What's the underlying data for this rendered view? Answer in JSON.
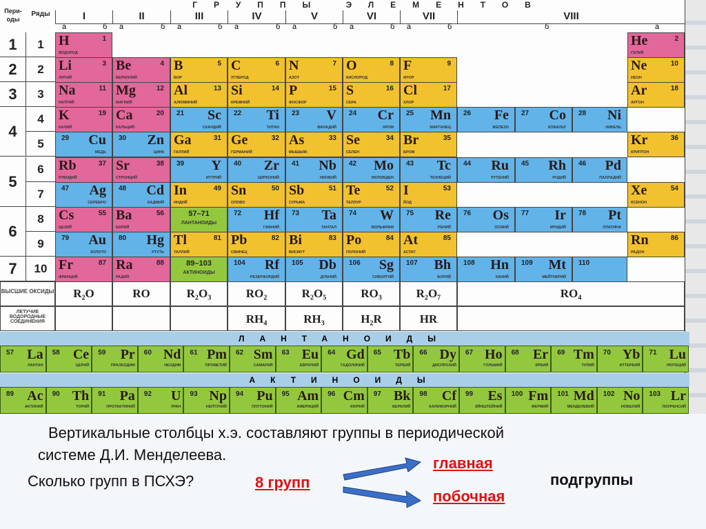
{
  "header": {
    "periods": "Пери-оды",
    "rows": "Ряды",
    "groups_title": "ГРУППЫ ЭЛЕМЕНТОВ",
    "groups": [
      "I",
      "II",
      "III",
      "IV",
      "V",
      "VI",
      "VII",
      "VIII"
    ],
    "sub_a": "а",
    "sub_b": "б",
    "periods_list": [
      "1",
      "2",
      "3",
      "4",
      "5",
      "6",
      "7"
    ],
    "rows_list": [
      "1",
      "2",
      "3",
      "4",
      "5",
      "6",
      "7",
      "8",
      "9",
      "10"
    ]
  },
  "colors": {
    "s": "#e2679a",
    "p": "#f2c12e",
    "d": "#62b3e8",
    "f": "#93c83e"
  },
  "elements": [
    {
      "n": "1",
      "s": "H",
      "name": "ВОДОРОД",
      "r": 1,
      "c": 0,
      "side": "a",
      "t": "s"
    },
    {
      "n": "2",
      "s": "He",
      "name": "ГЕЛИЙ",
      "r": 1,
      "c": 10,
      "side": "a",
      "t": "s"
    },
    {
      "n": "3",
      "s": "Li",
      "name": "ЛИТИЙ",
      "r": 2,
      "c": 0,
      "side": "a",
      "t": "s"
    },
    {
      "n": "4",
      "s": "Be",
      "name": "БЕРИЛЛИЙ",
      "r": 2,
      "c": 1,
      "side": "a",
      "t": "s"
    },
    {
      "n": "5",
      "s": "B",
      "name": "БОР",
      "r": 2,
      "c": 2,
      "side": "a",
      "t": "p"
    },
    {
      "n": "6",
      "s": "C",
      "name": "УГЛЕРОД",
      "r": 2,
      "c": 3,
      "side": "a",
      "t": "p"
    },
    {
      "n": "7",
      "s": "N",
      "name": "АЗОТ",
      "r": 2,
      "c": 4,
      "side": "a",
      "t": "p"
    },
    {
      "n": "8",
      "s": "O",
      "name": "КИСЛОРОД",
      "r": 2,
      "c": 5,
      "side": "a",
      "t": "p"
    },
    {
      "n": "9",
      "s": "F",
      "name": "ФТОР",
      "r": 2,
      "c": 6,
      "side": "a",
      "t": "p"
    },
    {
      "n": "10",
      "s": "Ne",
      "name": "НЕОН",
      "r": 2,
      "c": 10,
      "side": "a",
      "t": "p"
    },
    {
      "n": "11",
      "s": "Na",
      "name": "НАТРИЙ",
      "r": 3,
      "c": 0,
      "side": "a",
      "t": "s"
    },
    {
      "n": "12",
      "s": "Mg",
      "name": "МАГНИЙ",
      "r": 3,
      "c": 1,
      "side": "a",
      "t": "s"
    },
    {
      "n": "13",
      "s": "Al",
      "name": "АЛЮМИНИЙ",
      "r": 3,
      "c": 2,
      "side": "a",
      "t": "p"
    },
    {
      "n": "14",
      "s": "Si",
      "name": "КРЕМНИЙ",
      "r": 3,
      "c": 3,
      "side": "a",
      "t": "p"
    },
    {
      "n": "15",
      "s": "P",
      "name": "ФОСФОР",
      "r": 3,
      "c": 4,
      "side": "a",
      "t": "p"
    },
    {
      "n": "16",
      "s": "S",
      "name": "СЕРА",
      "r": 3,
      "c": 5,
      "side": "a",
      "t": "p"
    },
    {
      "n": "17",
      "s": "Cl",
      "name": "ХЛОР",
      "r": 3,
      "c": 6,
      "side": "a",
      "t": "p"
    },
    {
      "n": "18",
      "s": "Ar",
      "name": "АРГОН",
      "r": 3,
      "c": 10,
      "side": "a",
      "t": "p"
    },
    {
      "n": "19",
      "s": "K",
      "name": "КАЛИЙ",
      "r": 4,
      "c": 0,
      "side": "a",
      "t": "s"
    },
    {
      "n": "20",
      "s": "Ca",
      "name": "КАЛЬЦИЙ",
      "r": 4,
      "c": 1,
      "side": "a",
      "t": "s"
    },
    {
      "n": "21",
      "s": "Sc",
      "name": "СКАНДИЙ",
      "r": 4,
      "c": 2,
      "side": "b",
      "t": "d"
    },
    {
      "n": "22",
      "s": "Ti",
      "name": "ТИТАН",
      "r": 4,
      "c": 3,
      "side": "b",
      "t": "d"
    },
    {
      "n": "23",
      "s": "V",
      "name": "ВАНАДИЙ",
      "r": 4,
      "c": 4,
      "side": "b",
      "t": "d"
    },
    {
      "n": "24",
      "s": "Cr",
      "name": "ХРОМ",
      "r": 4,
      "c": 5,
      "side": "b",
      "t": "d"
    },
    {
      "n": "25",
      "s": "Mn",
      "name": "МАРГАНЕЦ",
      "r": 4,
      "c": 6,
      "side": "b",
      "t": "d"
    },
    {
      "n": "26",
      "s": "Fe",
      "name": "ЖЕЛЕЗО",
      "r": 4,
      "c": 7,
      "side": "b",
      "t": "d"
    },
    {
      "n": "27",
      "s": "Co",
      "name": "КОБАЛЬТ",
      "r": 4,
      "c": 8,
      "side": "b",
      "t": "d"
    },
    {
      "n": "28",
      "s": "Ni",
      "name": "НИКЕЛЬ",
      "r": 4,
      "c": 9,
      "side": "b",
      "t": "d"
    },
    {
      "n": "29",
      "s": "Cu",
      "name": "МЕДЬ",
      "r": 5,
      "c": 0,
      "side": "b",
      "t": "d"
    },
    {
      "n": "30",
      "s": "Zn",
      "name": "ЦИНК",
      "r": 5,
      "c": 1,
      "side": "b",
      "t": "d"
    },
    {
      "n": "31",
      "s": "Ga",
      "name": "ГАЛЛИЙ",
      "r": 5,
      "c": 2,
      "side": "a",
      "t": "p"
    },
    {
      "n": "32",
      "s": "Ge",
      "name": "ГЕРМАНИЙ",
      "r": 5,
      "c": 3,
      "side": "a",
      "t": "p"
    },
    {
      "n": "33",
      "s": "As",
      "name": "МЫШЬЯК",
      "r": 5,
      "c": 4,
      "side": "a",
      "t": "p"
    },
    {
      "n": "34",
      "s": "Se",
      "name": "СЕЛЕН",
      "r": 5,
      "c": 5,
      "side": "a",
      "t": "p"
    },
    {
      "n": "35",
      "s": "Br",
      "name": "БРОМ",
      "r": 5,
      "c": 6,
      "side": "a",
      "t": "p"
    },
    {
      "n": "36",
      "s": "Kr",
      "name": "КРИПТОН",
      "r": 5,
      "c": 10,
      "side": "a",
      "t": "p"
    },
    {
      "n": "37",
      "s": "Rb",
      "name": "РУБИДИЙ",
      "r": 6,
      "c": 0,
      "side": "a",
      "t": "s"
    },
    {
      "n": "38",
      "s": "Sr",
      "name": "СТРОНЦИЙ",
      "r": 6,
      "c": 1,
      "side": "a",
      "t": "s"
    },
    {
      "n": "39",
      "s": "Y",
      "name": "ИТТРИЙ",
      "r": 6,
      "c": 2,
      "side": "b",
      "t": "d"
    },
    {
      "n": "40",
      "s": "Zr",
      "name": "ЦИРКОНИЙ",
      "r": 6,
      "c": 3,
      "side": "b",
      "t": "d"
    },
    {
      "n": "41",
      "s": "Nb",
      "name": "НИОБИЙ",
      "r": 6,
      "c": 4,
      "side": "b",
      "t": "d"
    },
    {
      "n": "42",
      "s": "Mo",
      "name": "МОЛИБДЕН",
      "r": 6,
      "c": 5,
      "side": "b",
      "t": "d"
    },
    {
      "n": "43",
      "s": "Tc",
      "name": "ТЕХНЕЦИЙ",
      "r": 6,
      "c": 6,
      "side": "b",
      "t": "d"
    },
    {
      "n": "44",
      "s": "Ru",
      "name": "РУТЕНИЙ",
      "r": 6,
      "c": 7,
      "side": "b",
      "t": "d"
    },
    {
      "n": "45",
      "s": "Rh",
      "name": "РОДИЙ",
      "r": 6,
      "c": 8,
      "side": "b",
      "t": "d"
    },
    {
      "n": "46",
      "s": "Pd",
      "name": "ПАЛЛАДИЙ",
      "r": 6,
      "c": 9,
      "side": "b",
      "t": "d"
    },
    {
      "n": "47",
      "s": "Ag",
      "name": "СЕРЕБРО",
      "r": 7,
      "c": 0,
      "side": "b",
      "t": "d"
    },
    {
      "n": "48",
      "s": "Cd",
      "name": "КАДМИЙ",
      "r": 7,
      "c": 1,
      "side": "b",
      "t": "d"
    },
    {
      "n": "49",
      "s": "In",
      "name": "ИНДИЙ",
      "r": 7,
      "c": 2,
      "side": "a",
      "t": "p"
    },
    {
      "n": "50",
      "s": "Sn",
      "name": "ОЛОВО",
      "r": 7,
      "c": 3,
      "side": "a",
      "t": "p"
    },
    {
      "n": "51",
      "s": "Sb",
      "name": "СУРЬМА",
      "r": 7,
      "c": 4,
      "side": "a",
      "t": "p"
    },
    {
      "n": "52",
      "s": "Te",
      "name": "ТЕЛЛУР",
      "r": 7,
      "c": 5,
      "side": "a",
      "t": "p"
    },
    {
      "n": "53",
      "s": "I",
      "name": "ЙОД",
      "r": 7,
      "c": 6,
      "side": "a",
      "t": "p"
    },
    {
      "n": "54",
      "s": "Xe",
      "name": "КСЕНОН",
      "r": 7,
      "c": 10,
      "side": "a",
      "t": "p"
    },
    {
      "n": "55",
      "s": "Cs",
      "name": "ЦЕЗИЙ",
      "r": 8,
      "c": 0,
      "side": "a",
      "t": "s"
    },
    {
      "n": "56",
      "s": "Ba",
      "name": "БАРИЙ",
      "r": 8,
      "c": 1,
      "side": "a",
      "t": "s"
    },
    {
      "n": "57–71",
      "s": "",
      "name": "ЛАНТАНОИДЫ",
      "r": 8,
      "c": 2,
      "side": "c",
      "t": "f"
    },
    {
      "n": "72",
      "s": "Hf",
      "name": "ГАФНИЙ",
      "r": 8,
      "c": 3,
      "side": "b",
      "t": "d"
    },
    {
      "n": "73",
      "s": "Ta",
      "name": "ТАНТАЛ",
      "r": 8,
      "c": 4,
      "side": "b",
      "t": "d"
    },
    {
      "n": "74",
      "s": "W",
      "name": "ВОЛЬФРАМ",
      "r": 8,
      "c": 5,
      "side": "b",
      "t": "d"
    },
    {
      "n": "75",
      "s": "Re",
      "name": "РЕНИЙ",
      "r": 8,
      "c": 6,
      "side": "b",
      "t": "d"
    },
    {
      "n": "76",
      "s": "Os",
      "name": "ОСМИЙ",
      "r": 8,
      "c": 7,
      "side": "b",
      "t": "d"
    },
    {
      "n": "77",
      "s": "Ir",
      "name": "ИРИДИЙ",
      "r": 8,
      "c": 8,
      "side": "b",
      "t": "d"
    },
    {
      "n": "78",
      "s": "Pt",
      "name": "ПЛАТИНА",
      "r": 8,
      "c": 9,
      "side": "b",
      "t": "d"
    },
    {
      "n": "79",
      "s": "Au",
      "name": "ЗОЛОТО",
      "r": 9,
      "c": 0,
      "side": "b",
      "t": "d"
    },
    {
      "n": "80",
      "s": "Hg",
      "name": "РТУТЬ",
      "r": 9,
      "c": 1,
      "side": "b",
      "t": "d"
    },
    {
      "n": "81",
      "s": "Tl",
      "name": "ТАЛЛИЙ",
      "r": 9,
      "c": 2,
      "side": "a",
      "t": "p"
    },
    {
      "n": "82",
      "s": "Pb",
      "name": "СВИНЕЦ",
      "r": 9,
      "c": 3,
      "side": "a",
      "t": "p"
    },
    {
      "n": "83",
      "s": "Bi",
      "name": "ВИСМУТ",
      "r": 9,
      "c": 4,
      "side": "a",
      "t": "p"
    },
    {
      "n": "84",
      "s": "Po",
      "name": "ПОЛОНИЙ",
      "r": 9,
      "c": 5,
      "side": "a",
      "t": "p"
    },
    {
      "n": "85",
      "s": "At",
      "name": "АСТАТ",
      "r": 9,
      "c": 6,
      "side": "a",
      "t": "p"
    },
    {
      "n": "86",
      "s": "Rn",
      "name": "РАДОН",
      "r": 9,
      "c": 10,
      "side": "a",
      "t": "p"
    },
    {
      "n": "87",
      "s": "Fr",
      "name": "ФРАНЦИЙ",
      "r": 10,
      "c": 0,
      "side": "a",
      "t": "s"
    },
    {
      "n": "88",
      "s": "Ra",
      "name": "РАДИЙ",
      "r": 10,
      "c": 1,
      "side": "a",
      "t": "s"
    },
    {
      "n": "89–103",
      "s": "",
      "name": "АКТИНОИДЫ",
      "r": 10,
      "c": 2,
      "side": "c",
      "t": "f"
    },
    {
      "n": "104",
      "s": "Rf",
      "name": "РЕЗЕРФОРДИЙ",
      "r": 10,
      "c": 3,
      "side": "b",
      "t": "d"
    },
    {
      "n": "105",
      "s": "Db",
      "name": "ДУБНИЙ",
      "r": 10,
      "c": 4,
      "side": "b",
      "t": "d"
    },
    {
      "n": "106",
      "s": "Sg",
      "name": "СИБОРГИЙ",
      "r": 10,
      "c": 5,
      "side": "b",
      "t": "d"
    },
    {
      "n": "107",
      "s": "Bh",
      "name": "БОРИЙ",
      "r": 10,
      "c": 6,
      "side": "b",
      "t": "d"
    },
    {
      "n": "108",
      "s": "Hn",
      "name": "ХАНИЙ",
      "r": 10,
      "c": 7,
      "side": "b",
      "t": "d"
    },
    {
      "n": "109",
      "s": "Mt",
      "name": "МЕЙТНЕРИЙ",
      "r": 10,
      "c": 8,
      "side": "b",
      "t": "d"
    },
    {
      "n": "110",
      "s": "",
      "name": "",
      "r": 10,
      "c": 9,
      "side": "b",
      "t": "d"
    }
  ],
  "oxides": {
    "label": "ВЫСШИЕ ОКСИДЫ",
    "values": [
      "R₂O",
      "RO",
      "R₂O₃",
      "RO₂",
      "R₂O₅",
      "RO₃",
      "R₂O₇",
      "RO₄"
    ]
  },
  "hydrides": {
    "label": "ЛЕТУЧИЕ ВОДОРОДНЫЕ СОЕДИНЕНИЯ",
    "values": [
      "",
      "",
      "",
      "RH₄",
      "RH₃",
      "H₂R",
      "HR",
      ""
    ]
  },
  "lanthanides": {
    "title": "ЛАНТАНОИДЫ",
    "items": [
      [
        "57",
        "La",
        "ЛАНТАН"
      ],
      [
        "58",
        "Ce",
        "ЦЕРИЙ"
      ],
      [
        "59",
        "Pr",
        "ПРАЗЕОДИМ"
      ],
      [
        "60",
        "Nd",
        "НЕОДИМ"
      ],
      [
        "61",
        "Pm",
        "ПРОМЕТИЙ"
      ],
      [
        "62",
        "Sm",
        "САМАРИЙ"
      ],
      [
        "63",
        "Eu",
        "ЕВРОПИЙ"
      ],
      [
        "64",
        "Gd",
        "ГАДОЛИНИЙ"
      ],
      [
        "65",
        "Tb",
        "ТЕРБИЙ"
      ],
      [
        "66",
        "Dy",
        "ДИСПРОЗИЙ"
      ],
      [
        "67",
        "Ho",
        "ГОЛЬМИЙ"
      ],
      [
        "68",
        "Er",
        "ЭРБИЙ"
      ],
      [
        "69",
        "Tm",
        "ТУЛИЙ"
      ],
      [
        "70",
        "Yb",
        "ИТТЕРБИЙ"
      ],
      [
        "71",
        "Lu",
        "ЛЮТЕЦИЙ"
      ]
    ]
  },
  "actinides": {
    "title": "АКТИНОИДЫ",
    "items": [
      [
        "89",
        "Ac",
        "АКТИНИЙ"
      ],
      [
        "90",
        "Th",
        "ТОРИЙ"
      ],
      [
        "91",
        "Pa",
        "ПРОТАКТИНИЙ"
      ],
      [
        "92",
        "U",
        "УРАН"
      ],
      [
        "93",
        "Np",
        "НЕПТУНИЙ"
      ],
      [
        "94",
        "Pu",
        "ПЛУТОНИЙ"
      ],
      [
        "95",
        "Am",
        "АМЕРИЦИЙ"
      ],
      [
        "96",
        "Cm",
        "КЮРИЙ"
      ],
      [
        "97",
        "Bk",
        "БЕРКЛИЙ"
      ],
      [
        "98",
        "Cf",
        "КАЛИФОРНИЙ"
      ],
      [
        "99",
        "Es",
        "ЭЙНШТЕЙНИЙ"
      ],
      [
        "100",
        "Fm",
        "ФЕРМИЙ"
      ],
      [
        "101",
        "Md",
        "МЕНДЕЛЕВИЙ"
      ],
      [
        "102",
        "No",
        "НОБЕЛИЙ"
      ],
      [
        "103",
        "Lr",
        "ЛОУРЕНСИЙ"
      ]
    ]
  },
  "slide": {
    "line1": "Вертикальные столбцы х.э. составляют группы в периодической",
    "line2": "системе  Д.И. Менделеева.",
    "question": "Сколько групп в ПСХЭ?",
    "answer": "8 групп",
    "main": "главная",
    "side": "побочная",
    "subgroups": "подгруппы"
  }
}
